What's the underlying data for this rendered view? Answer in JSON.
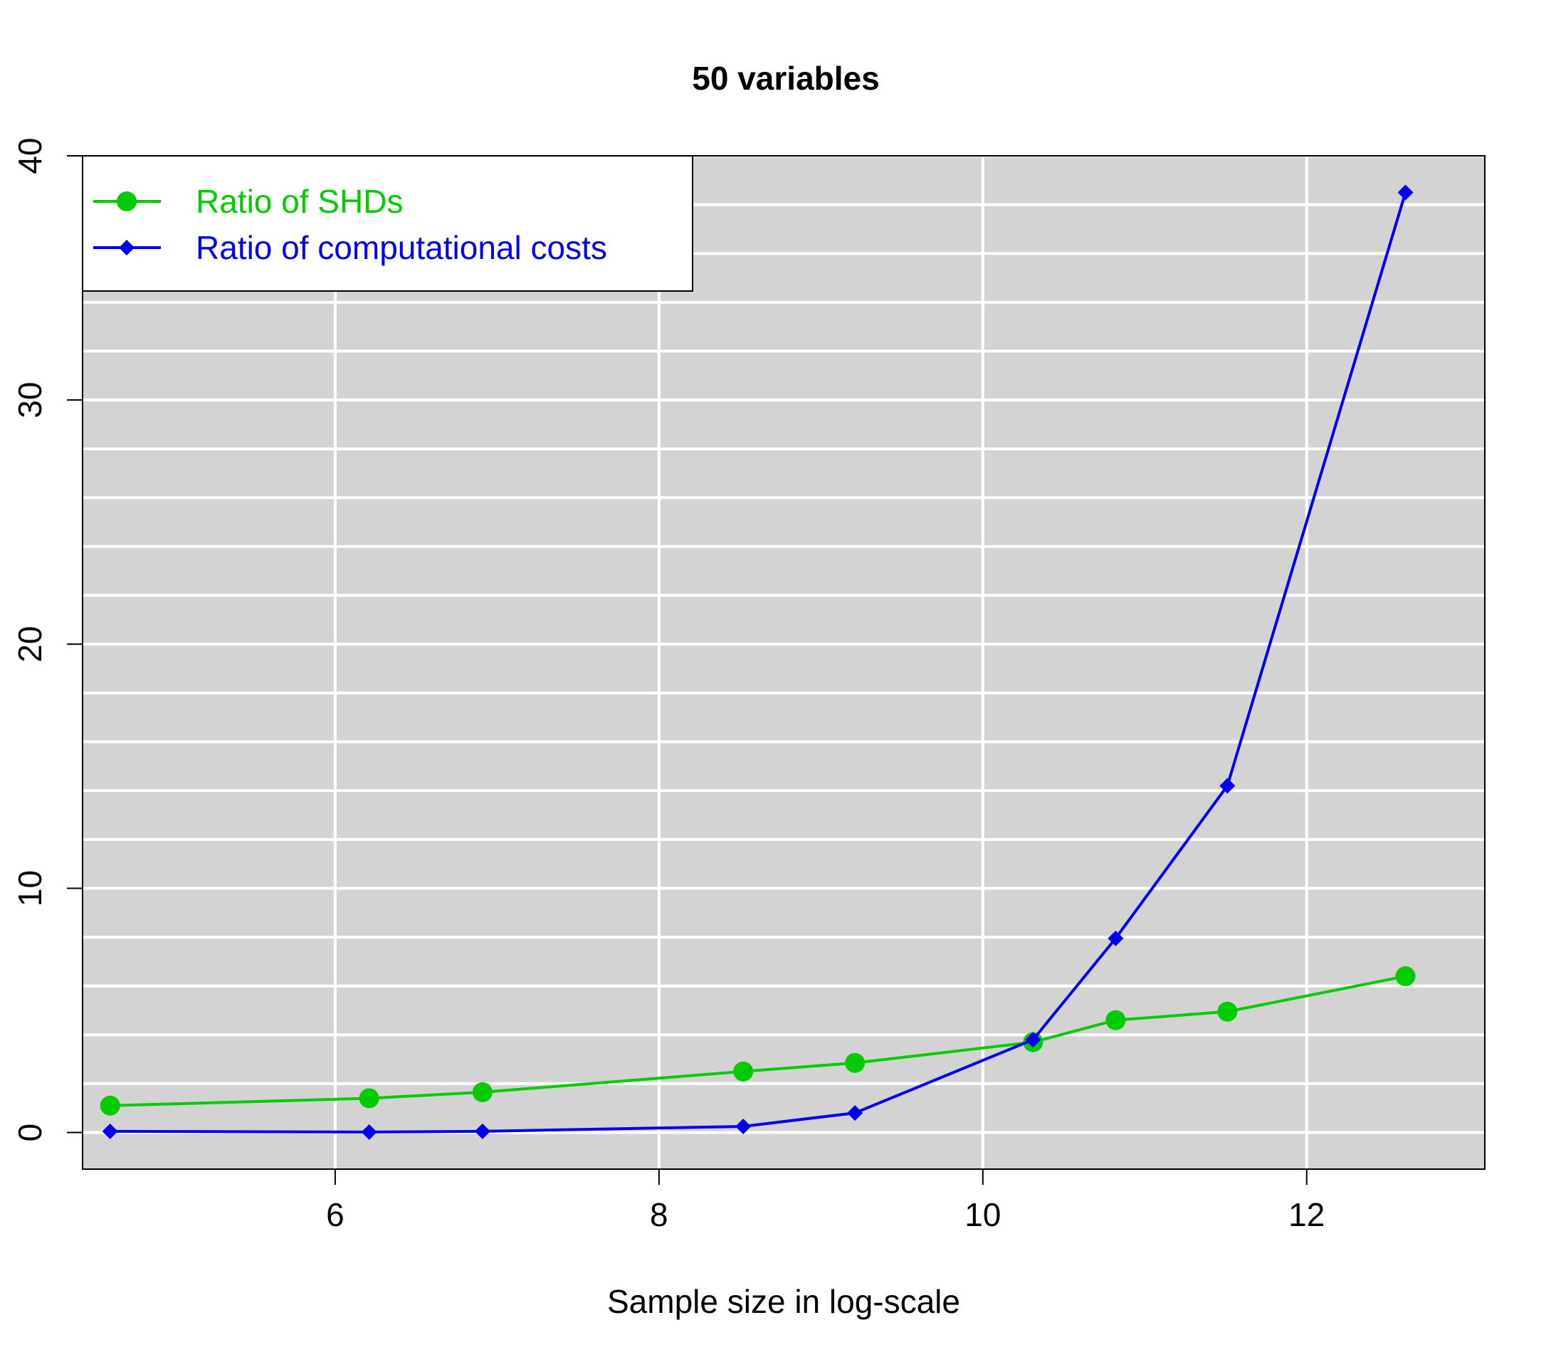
{
  "chart_data": {
    "type": "line",
    "title": "50 variables",
    "xlabel": "Sample size in log-scale",
    "ylabel": "",
    "xlim": [
      4.44,
      13.1
    ],
    "ylim": [
      -1.5,
      40
    ],
    "x_ticks": [
      6,
      8,
      10,
      12
    ],
    "y_ticks": [
      0,
      10,
      20,
      30,
      40
    ],
    "background": "#d3d3d3",
    "grid": true,
    "legend_position": "top-left",
    "series": [
      {
        "name": "Ratio of SHDs",
        "color": "#00cc00",
        "marker": "circle",
        "x": [
          4.61,
          6.21,
          6.91,
          8.52,
          9.21,
          10.31,
          10.82,
          11.51,
          12.61
        ],
        "y": [
          1.1,
          1.4,
          1.65,
          2.5,
          2.85,
          3.7,
          4.6,
          4.95,
          6.4
        ]
      },
      {
        "name": "Ratio of computational costs",
        "color": "#0000ee",
        "marker": "diamond",
        "x": [
          4.61,
          6.21,
          6.91,
          8.52,
          9.21,
          10.31,
          10.82,
          11.51,
          12.61
        ],
        "y": [
          0.05,
          0.02,
          0.05,
          0.25,
          0.8,
          3.8,
          7.95,
          14.2,
          38.5
        ]
      }
    ]
  }
}
